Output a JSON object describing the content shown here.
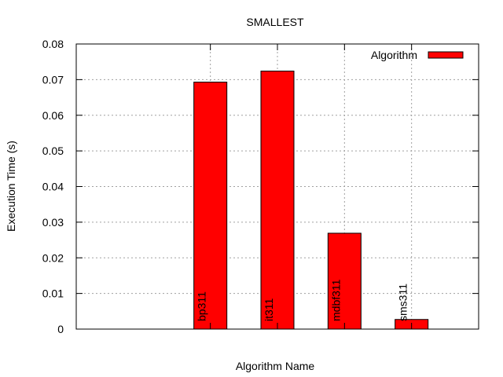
{
  "chart_data": {
    "type": "bar",
    "title": "SMALLEST",
    "xlabel": "Algorithm Name",
    "ylabel": "Execution Time (s)",
    "ylim": [
      0,
      0.08
    ],
    "yticks": [
      "0",
      "0.01",
      "0.02",
      "0.03",
      "0.04",
      "0.05",
      "0.06",
      "0.07",
      "0.08"
    ],
    "ytick_values": [
      0,
      0.01,
      0.02,
      0.03,
      0.04,
      0.05,
      0.06,
      0.07,
      0.08
    ],
    "categories": [
      "bp311",
      "it311",
      "mdbf311",
      "sms311"
    ],
    "series": [
      {
        "name": "Algorithm",
        "values": [
          0.0693,
          0.0724,
          0.0269,
          0.0027
        ],
        "color": "#ff0000"
      }
    ],
    "legend": "top-right",
    "grid": true,
    "bar_labels": "vertical, inside bars"
  }
}
